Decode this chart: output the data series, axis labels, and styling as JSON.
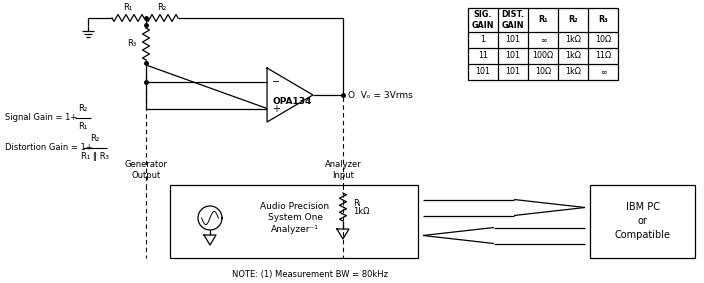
{
  "background_color": "#ffffff",
  "table_rows": [
    [
      "1",
      "101",
      "∞",
      "1kΩ",
      "10Ω"
    ],
    [
      "11",
      "101",
      "100Ω",
      "1kΩ",
      "11Ω"
    ],
    [
      "101",
      "101",
      "10Ω",
      "1kΩ",
      "∞"
    ]
  ],
  "note_text": "NOTE: (1) Measurement BW = 80kHz",
  "opamp_label": "OPA134",
  "vo_label": "Vₒ = 3Vrms",
  "r1_label": "R₁",
  "r2_label": "R₂",
  "r3_label": "R₃",
  "rl_label": "Rₗ",
  "rl_value": "1kΩ",
  "gen_output_label": "Generator\nOutput",
  "analyzer_input_label": "Analyzer\nInput",
  "audio_label": "Audio Precision\nSystem One\nAnalyzer⁻¹",
  "ibm_label": "IBM PC\nor\nCompatible",
  "sig_gain_prefix": "Signal Gain = 1+",
  "dist_gain_prefix": "Distortion Gain = 1+",
  "frac_num": "R₂",
  "sig_frac_den": "R₁",
  "dist_frac_den": "R₁ ‖ R₃"
}
